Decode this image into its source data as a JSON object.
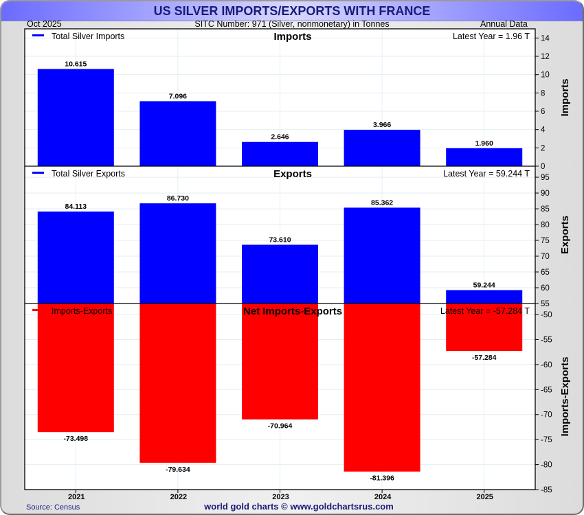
{
  "header": {
    "title": "US SILVER IMPORTS/EXPORTS WITH FRANCE",
    "date": "Oct  2025",
    "subtitle": "SITC Number: 971 (Silver, nonmonetary) in Tonnes",
    "frequency": "Annual Data"
  },
  "footer": {
    "source": "Source: Census",
    "credit": "world gold charts © www.goldchartsrus.com"
  },
  "colors": {
    "imports": "#0000ff",
    "exports": "#0000ff",
    "net": "#ff0000",
    "grid": "#e3eef6",
    "title_text": "#1a1a7a"
  },
  "chart_data": [
    {
      "type": "bar",
      "panel": "imports",
      "title": "Imports",
      "ylabel": "Imports",
      "legend": "Total Silver Imports",
      "legend_position": "top-left",
      "latest_label": "Latest Year = 1.96 T",
      "categories": [
        "2021",
        "2022",
        "2023",
        "2024",
        "2025"
      ],
      "values": [
        10.615,
        7.096,
        2.646,
        3.966,
        1.96
      ],
      "value_labels": [
        "10.615",
        "7.096",
        "2.646",
        "3.966",
        "1.960"
      ],
      "ylim": [
        0,
        15
      ],
      "yticks": [
        0,
        2,
        4,
        6,
        8,
        10,
        12,
        14
      ],
      "grid": true
    },
    {
      "type": "bar",
      "panel": "exports",
      "title": "Exports",
      "ylabel": "Exports",
      "legend": "Total Silver Exports",
      "legend_position": "top-left",
      "latest_label": "Latest Year = 59.244 T",
      "categories": [
        "2021",
        "2022",
        "2023",
        "2024",
        "2025"
      ],
      "values": [
        84.113,
        86.73,
        73.61,
        85.362,
        59.244
      ],
      "value_labels": [
        "84.113",
        "86.730",
        "73.610",
        "85.362",
        "59.244"
      ],
      "ylim": [
        55,
        98.5
      ],
      "yticks": [
        55,
        60,
        65,
        70,
        75,
        80,
        85,
        90,
        95
      ],
      "grid": true
    },
    {
      "type": "bar",
      "panel": "net",
      "title": "Net Imports-Exports",
      "ylabel": "Imports-Exports",
      "legend": "Imports-Exports",
      "legend_position": "top-left",
      "latest_label": "Latest Year = -57.284 T",
      "categories": [
        "2021",
        "2022",
        "2023",
        "2024",
        "2025"
      ],
      "values": [
        -73.498,
        -79.634,
        -70.964,
        -81.396,
        -57.284
      ],
      "value_labels": [
        "-73.498",
        "-79.634",
        "-70.964",
        "-81.396",
        "-57.284"
      ],
      "ylim": [
        -85,
        -47.8
      ],
      "yticks": [
        -50,
        -55,
        -60,
        -65,
        -70,
        -75,
        -80,
        -85
      ],
      "grid": true
    }
  ]
}
